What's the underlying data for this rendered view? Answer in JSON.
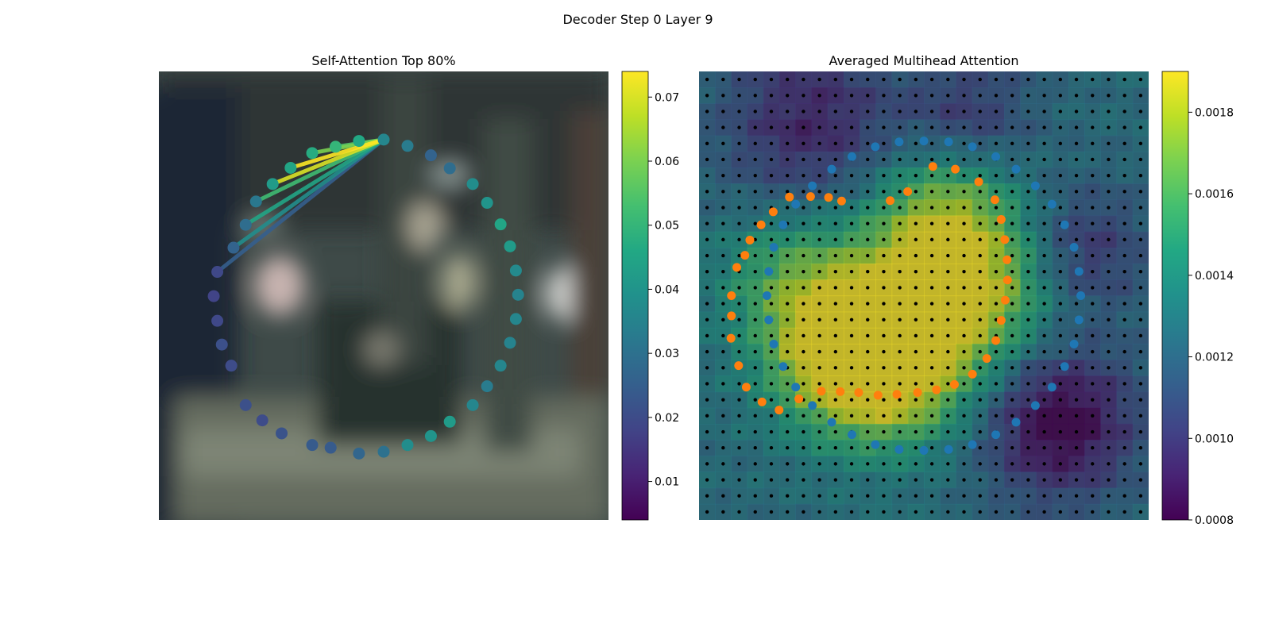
{
  "figure": {
    "suptitle": "Decoder Step 0 Layer 9"
  },
  "chart_data": [
    {
      "type": "scatter",
      "title": "Self-Attention Top 80%",
      "axes": "off",
      "background": "blurred photograph (dark teal / gray interior scene)",
      "image_extent": {
        "x": [
          0,
          1
        ],
        "y": [
          0,
          1
        ]
      },
      "colormap": "viridis",
      "color_limits": [
        0.004,
        0.074
      ],
      "colorbar_ticks": [
        "0.01",
        "0.02",
        "0.03",
        "0.04",
        "0.05",
        "0.06",
        "0.07"
      ],
      "colorbar_tick_values": [
        0.01,
        0.02,
        0.03,
        0.04,
        0.05,
        0.06,
        0.07
      ],
      "query_point_index": 0,
      "points": [
        {
          "x": 0.5,
          "y": 0.152,
          "v": 0.036
        },
        {
          "x": 0.553,
          "y": 0.166,
          "v": 0.033
        },
        {
          "x": 0.605,
          "y": 0.187,
          "v": 0.026
        },
        {
          "x": 0.647,
          "y": 0.216,
          "v": 0.029
        },
        {
          "x": 0.698,
          "y": 0.251,
          "v": 0.038
        },
        {
          "x": 0.73,
          "y": 0.293,
          "v": 0.04
        },
        {
          "x": 0.76,
          "y": 0.341,
          "v": 0.045
        },
        {
          "x": 0.781,
          "y": 0.39,
          "v": 0.042
        },
        {
          "x": 0.794,
          "y": 0.444,
          "v": 0.037
        },
        {
          "x": 0.799,
          "y": 0.498,
          "v": 0.035
        },
        {
          "x": 0.794,
          "y": 0.552,
          "v": 0.036
        },
        {
          "x": 0.781,
          "y": 0.605,
          "v": 0.035
        },
        {
          "x": 0.76,
          "y": 0.656,
          "v": 0.036
        },
        {
          "x": 0.73,
          "y": 0.702,
          "v": 0.033
        },
        {
          "x": 0.698,
          "y": 0.744,
          "v": 0.036
        },
        {
          "x": 0.647,
          "y": 0.781,
          "v": 0.042
        },
        {
          "x": 0.605,
          "y": 0.813,
          "v": 0.04
        },
        {
          "x": 0.553,
          "y": 0.833,
          "v": 0.038
        },
        {
          "x": 0.5,
          "y": 0.848,
          "v": 0.03
        },
        {
          "x": 0.445,
          "y": 0.852,
          "v": 0.027
        },
        {
          "x": 0.382,
          "y": 0.839,
          "v": 0.024
        },
        {
          "x": 0.341,
          "y": 0.833,
          "v": 0.024
        },
        {
          "x": 0.273,
          "y": 0.807,
          "v": 0.022
        },
        {
          "x": 0.23,
          "y": 0.778,
          "v": 0.02
        },
        {
          "x": 0.193,
          "y": 0.744,
          "v": 0.021
        },
        {
          "x": 0.161,
          "y": 0.656,
          "v": 0.02
        },
        {
          "x": 0.14,
          "y": 0.609,
          "v": 0.021
        },
        {
          "x": 0.13,
          "y": 0.556,
          "v": 0.019
        },
        {
          "x": 0.122,
          "y": 0.501,
          "v": 0.018
        },
        {
          "x": 0.13,
          "y": 0.447,
          "v": 0.019
        },
        {
          "x": 0.166,
          "y": 0.393,
          "v": 0.026
        },
        {
          "x": 0.193,
          "y": 0.342,
          "v": 0.029
        },
        {
          "x": 0.216,
          "y": 0.29,
          "v": 0.032
        },
        {
          "x": 0.253,
          "y": 0.251,
          "v": 0.042
        },
        {
          "x": 0.293,
          "y": 0.215,
          "v": 0.045
        },
        {
          "x": 0.341,
          "y": 0.182,
          "v": 0.047
        },
        {
          "x": 0.393,
          "y": 0.168,
          "v": 0.05
        },
        {
          "x": 0.445,
          "y": 0.155,
          "v": 0.046
        }
      ],
      "attention_lines": [
        {
          "from": 0,
          "to": 36,
          "v": 0.055
        },
        {
          "from": 0,
          "to": 35,
          "v": 0.06
        },
        {
          "from": 0,
          "to": 34,
          "v": 0.074
        },
        {
          "from": 0,
          "to": 33,
          "v": 0.07
        },
        {
          "from": 0,
          "to": 32,
          "v": 0.052
        },
        {
          "from": 0,
          "to": 31,
          "v": 0.045
        },
        {
          "from": 0,
          "to": 30,
          "v": 0.038
        },
        {
          "from": 0,
          "to": 29,
          "v": 0.025
        }
      ]
    },
    {
      "type": "heatmap",
      "title": "Averaged Multihead Attention",
      "axes": "off",
      "colormap": "viridis",
      "overlay_opacity": 0.55,
      "color_limits": [
        0.0008,
        0.0019
      ],
      "colorbar_ticks": [
        "0.0008",
        "0.0010",
        "0.0012",
        "0.0014",
        "0.0016",
        "0.0018"
      ],
      "colorbar_tick_values": [
        0.0008,
        0.001,
        0.0012,
        0.0014,
        0.0016,
        0.0018
      ],
      "grid": {
        "rows": 28,
        "cols": 28
      },
      "grid_points": {
        "rows": 28,
        "cols": 28,
        "color": "#000000"
      },
      "hotspots": [
        {
          "x": 0.42,
          "y": 0.66,
          "s": 0.12,
          "a": 0.0006
        },
        {
          "x": 0.3,
          "y": 0.62,
          "s": 0.11,
          "a": 0.0005
        },
        {
          "x": 0.62,
          "y": 0.48,
          "s": 0.13,
          "a": 0.00045
        },
        {
          "x": 0.55,
          "y": 0.3,
          "s": 0.1,
          "a": 0.0003
        },
        {
          "x": 0.18,
          "y": 0.45,
          "s": 0.1,
          "a": 0.00025
        },
        {
          "x": 0.45,
          "y": 0.48,
          "s": 0.16,
          "a": 0.00035
        }
      ],
      "coldspots": [
        {
          "x": 0.8,
          "y": 0.78,
          "s": 0.12,
          "a": 0.0005
        },
        {
          "x": 0.25,
          "y": 0.12,
          "s": 0.14,
          "a": 0.00035
        },
        {
          "x": 0.85,
          "y": 0.4,
          "s": 0.1,
          "a": 0.0003
        },
        {
          "x": 0.6,
          "y": 0.1,
          "s": 0.1,
          "a": 0.00025
        }
      ],
      "base_value": 0.00125,
      "series": [
        {
          "name": "",
          "color": "#1f77b4",
          "points": [
            {
              "x": 0.5,
              "y": 0.155
            },
            {
              "x": 0.555,
              "y": 0.157
            },
            {
              "x": 0.608,
              "y": 0.168
            },
            {
              "x": 0.66,
              "y": 0.19
            },
            {
              "x": 0.705,
              "y": 0.218
            },
            {
              "x": 0.748,
              "y": 0.255
            },
            {
              "x": 0.785,
              "y": 0.296
            },
            {
              "x": 0.813,
              "y": 0.342
            },
            {
              "x": 0.834,
              "y": 0.392
            },
            {
              "x": 0.845,
              "y": 0.446
            },
            {
              "x": 0.849,
              "y": 0.5
            },
            {
              "x": 0.845,
              "y": 0.554
            },
            {
              "x": 0.834,
              "y": 0.608
            },
            {
              "x": 0.813,
              "y": 0.658
            },
            {
              "x": 0.785,
              "y": 0.704
            },
            {
              "x": 0.748,
              "y": 0.745
            },
            {
              "x": 0.705,
              "y": 0.782
            },
            {
              "x": 0.66,
              "y": 0.81
            },
            {
              "x": 0.608,
              "y": 0.832
            },
            {
              "x": 0.555,
              "y": 0.843
            },
            {
              "x": 0.5,
              "y": 0.845
            },
            {
              "x": 0.445,
              "y": 0.843
            },
            {
              "x": 0.392,
              "y": 0.832
            },
            {
              "x": 0.34,
              "y": 0.81
            },
            {
              "x": 0.295,
              "y": 0.782
            },
            {
              "x": 0.252,
              "y": 0.745
            },
            {
              "x": 0.215,
              "y": 0.704
            },
            {
              "x": 0.187,
              "y": 0.658
            },
            {
              "x": 0.166,
              "y": 0.608
            },
            {
              "x": 0.155,
              "y": 0.554
            },
            {
              "x": 0.151,
              "y": 0.5
            },
            {
              "x": 0.155,
              "y": 0.446
            },
            {
              "x": 0.166,
              "y": 0.392
            },
            {
              "x": 0.187,
              "y": 0.342
            },
            {
              "x": 0.215,
              "y": 0.296
            },
            {
              "x": 0.252,
              "y": 0.255
            },
            {
              "x": 0.295,
              "y": 0.218
            },
            {
              "x": 0.34,
              "y": 0.19
            },
            {
              "x": 0.392,
              "y": 0.168
            },
            {
              "x": 0.445,
              "y": 0.157
            }
          ]
        },
        {
          "name": "",
          "color": "#ff7f0e",
          "points": [
            {
              "x": 0.52,
              "y": 0.212
            },
            {
              "x": 0.57,
              "y": 0.218
            },
            {
              "x": 0.622,
              "y": 0.246
            },
            {
              "x": 0.658,
              "y": 0.286
            },
            {
              "x": 0.672,
              "y": 0.33
            },
            {
              "x": 0.68,
              "y": 0.375
            },
            {
              "x": 0.685,
              "y": 0.42
            },
            {
              "x": 0.686,
              "y": 0.465
            },
            {
              "x": 0.681,
              "y": 0.51
            },
            {
              "x": 0.672,
              "y": 0.555
            },
            {
              "x": 0.66,
              "y": 0.6
            },
            {
              "x": 0.64,
              "y": 0.64
            },
            {
              "x": 0.608,
              "y": 0.675
            },
            {
              "x": 0.568,
              "y": 0.698
            },
            {
              "x": 0.528,
              "y": 0.71
            },
            {
              "x": 0.486,
              "y": 0.716
            },
            {
              "x": 0.44,
              "y": 0.72
            },
            {
              "x": 0.398,
              "y": 0.722
            },
            {
              "x": 0.355,
              "y": 0.716
            },
            {
              "x": 0.314,
              "y": 0.714
            },
            {
              "x": 0.272,
              "y": 0.713
            },
            {
              "x": 0.222,
              "y": 0.73
            },
            {
              "x": 0.178,
              "y": 0.755
            },
            {
              "x": 0.14,
              "y": 0.737
            },
            {
              "x": 0.105,
              "y": 0.704
            },
            {
              "x": 0.088,
              "y": 0.656
            },
            {
              "x": 0.071,
              "y": 0.595
            },
            {
              "x": 0.072,
              "y": 0.545
            },
            {
              "x": 0.072,
              "y": 0.5
            },
            {
              "x": 0.084,
              "y": 0.437
            },
            {
              "x": 0.102,
              "y": 0.41
            },
            {
              "x": 0.113,
              "y": 0.376
            },
            {
              "x": 0.138,
              "y": 0.342
            },
            {
              "x": 0.165,
              "y": 0.313
            },
            {
              "x": 0.201,
              "y": 0.28
            },
            {
              "x": 0.248,
              "y": 0.279
            },
            {
              "x": 0.288,
              "y": 0.281
            },
            {
              "x": 0.317,
              "y": 0.289
            },
            {
              "x": 0.425,
              "y": 0.288
            },
            {
              "x": 0.464,
              "y": 0.268
            }
          ]
        }
      ]
    }
  ]
}
